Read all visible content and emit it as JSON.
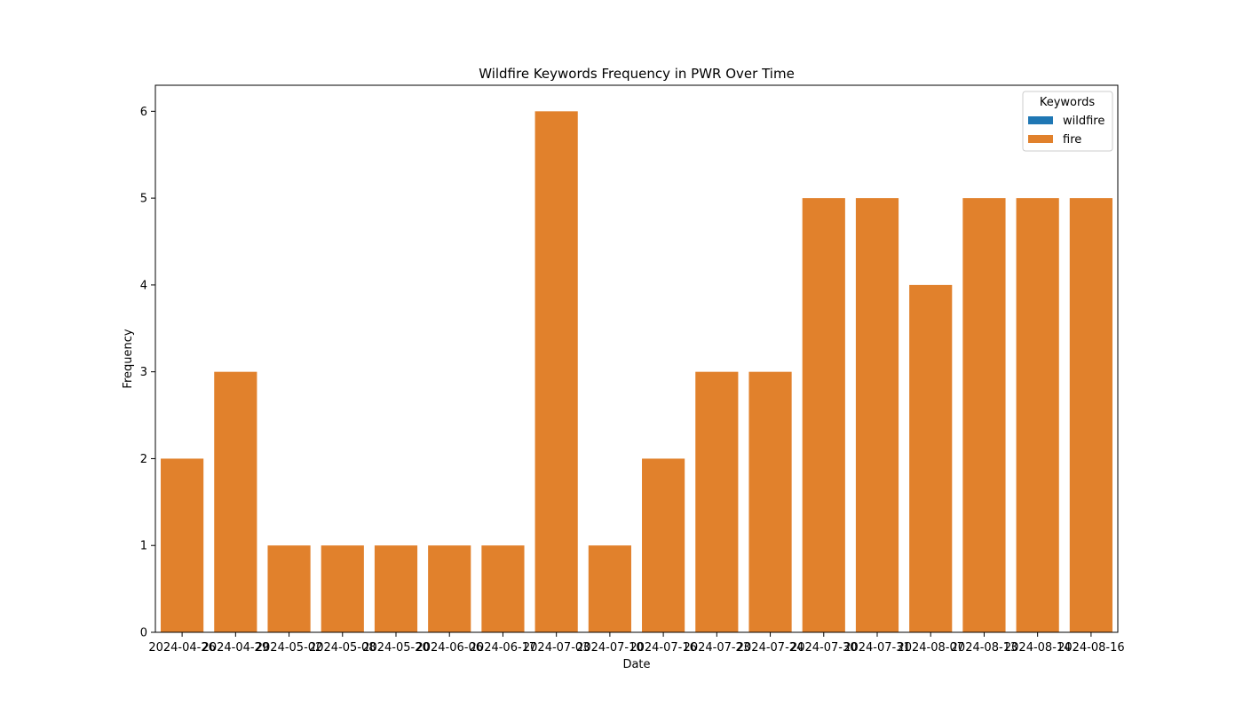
{
  "chart_data": {
    "type": "bar",
    "title": "Wildfire Keywords Frequency in PWR Over Time",
    "xlabel": "Date",
    "ylabel": "Frequency",
    "ylim": [
      0,
      6.3
    ],
    "yticks": [
      0,
      1,
      2,
      3,
      4,
      5,
      6
    ],
    "grid": false,
    "legend": {
      "title": "Keywords",
      "position": "top-right",
      "entries": [
        {
          "name": "wildfire",
          "color": "#1f77b4"
        },
        {
          "name": "fire",
          "color": "#e1812c"
        }
      ]
    },
    "categories": [
      "2024-04-26",
      "2024-04-29",
      "2024-05-02",
      "2024-05-08",
      "2024-05-20",
      "2024-06-06",
      "2024-06-17",
      "2024-07-03",
      "2024-07-10",
      "2024-07-16",
      "2024-07-23",
      "2024-07-24",
      "2024-07-30",
      "2024-07-31",
      "2024-08-07",
      "2024-08-13",
      "2024-08-14",
      "2024-08-16"
    ],
    "series": [
      {
        "name": "fire",
        "color": "#e1812c",
        "values": [
          2,
          3,
          1,
          1,
          1,
          1,
          1,
          6,
          1,
          2,
          3,
          3,
          5,
          5,
          4,
          5,
          5,
          5
        ]
      }
    ]
  }
}
